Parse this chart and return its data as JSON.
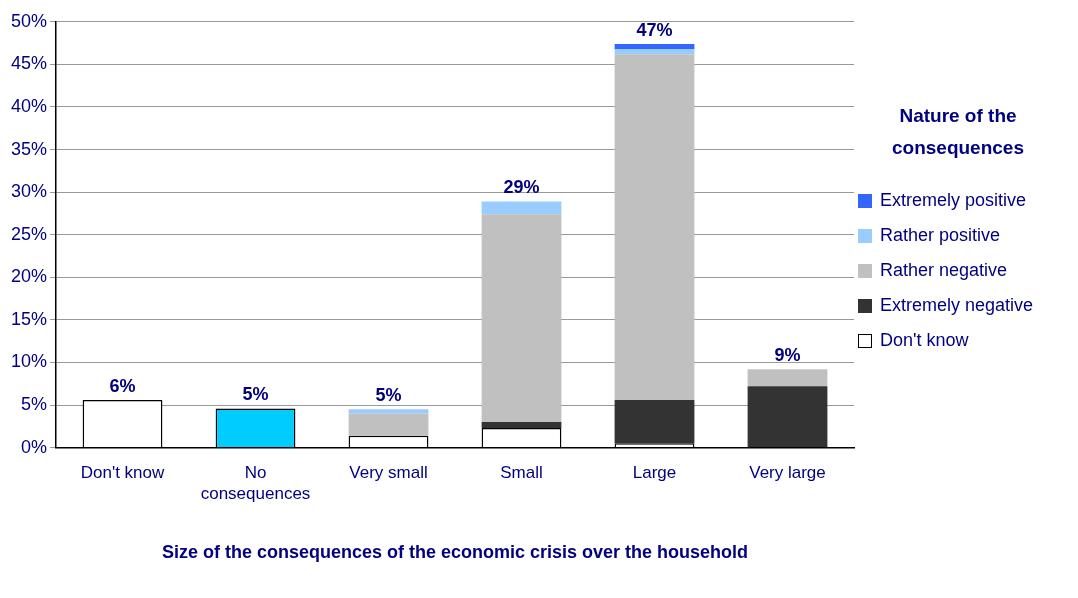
{
  "chart_data": {
    "type": "bar",
    "stacked": true,
    "xlabel": "Size of the consequences of the economic crisis over the household",
    "legend_title": "Nature of the consequences",
    "legend": "right",
    "grid": "y",
    "categories": [
      "Don't know",
      "No consequences",
      "Very small",
      "Small",
      "Large",
      "Very large"
    ],
    "ylim": [
      0,
      50
    ],
    "yticks": [
      {
        "value": 0,
        "label": "0%"
      },
      {
        "value": 5,
        "label": "5%"
      },
      {
        "value": 10,
        "label": "10%"
      },
      {
        "value": 15,
        "label": "15%"
      },
      {
        "value": 20,
        "label": "20%"
      },
      {
        "value": 25,
        "label": "25%"
      },
      {
        "value": 30,
        "label": "30%"
      },
      {
        "value": 35,
        "label": "35%"
      },
      {
        "value": 40,
        "label": "40%"
      },
      {
        "value": 45,
        "label": "45%"
      },
      {
        "value": 50,
        "label": "50%"
      }
    ],
    "series": [
      {
        "name": "Don't know",
        "color": "#ffffff",
        "colors": [
          "#ffffff",
          "#00ccff",
          "#ffffff",
          "#ffffff",
          "#ffffff",
          "#ffffff"
        ],
        "values": [
          5.6,
          4.6,
          1.4,
          2.3,
          0.5,
          null
        ]
      },
      {
        "name": "Extremely negative",
        "color": "#333333",
        "values": [
          null,
          null,
          null,
          0.7,
          5.1,
          7.2
        ]
      },
      {
        "name": "Rather negative",
        "color": "#c0c0c0",
        "values": [
          null,
          null,
          2.6,
          24.4,
          40.6,
          2.0
        ]
      },
      {
        "name": "Rather positive",
        "color": "#99ccff",
        "values": [
          null,
          null,
          0.5,
          1.5,
          0.6,
          null
        ]
      },
      {
        "name": "Extremely positive",
        "color": "#3366ff",
        "values": [
          null,
          null,
          null,
          null,
          0.6,
          null
        ]
      }
    ],
    "totals": [
      "6%",
      "5%",
      "5%",
      "29%",
      "47%",
      "9%"
    ]
  }
}
